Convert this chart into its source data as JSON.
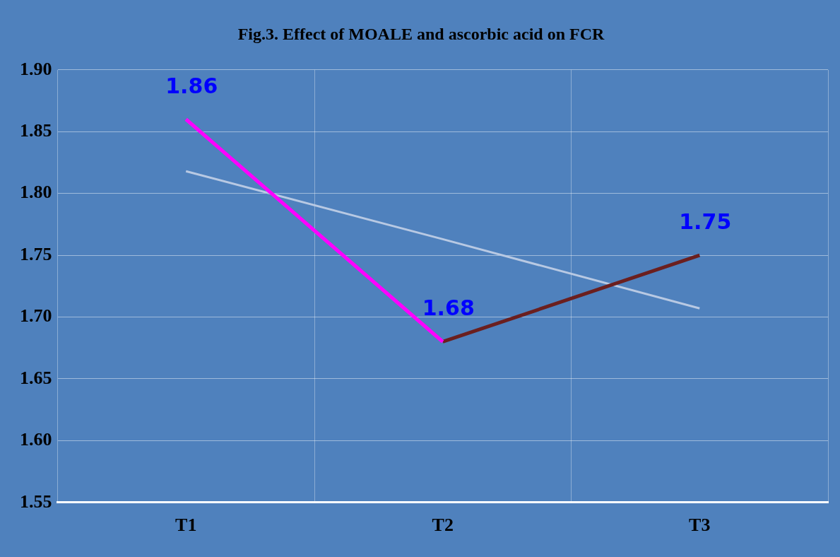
{
  "chart_data": {
    "type": "line",
    "title": "Fig.3. Effect of MOALE and ascorbic acid on FCR",
    "categories": [
      "T1",
      "T2",
      "T3"
    ],
    "series": [
      {
        "color": "#ff00ff",
        "values": [
          1.86,
          1.68,
          null
        ],
        "value_labels": [
          "1.86",
          "1.68",
          null
        ]
      },
      {
        "color": "#6b1f1f",
        "values": [
          null,
          1.68,
          1.75
        ],
        "value_labels": [
          null,
          null,
          "1.75"
        ]
      },
      {
        "type": "line",
        "color": "#b8c9e3",
        "values": [
          1.818,
          1.763,
          1.707
        ]
      }
    ],
    "ylim": [
      1.55,
      1.9
    ],
    "yticks": [
      {
        "value": 1.55,
        "label": "1.55"
      },
      {
        "value": 1.6,
        "label": "1.60"
      },
      {
        "value": 1.65,
        "label": "1.65"
      },
      {
        "value": 1.7,
        "label": "1.70"
      },
      {
        "value": 1.75,
        "label": "1.75"
      },
      {
        "value": 1.8,
        "label": "1.80"
      },
      {
        "value": 1.85,
        "label": "1.85"
      },
      {
        "value": 1.9,
        "label": "1.90"
      }
    ],
    "grid": true,
    "marker": "none"
  }
}
